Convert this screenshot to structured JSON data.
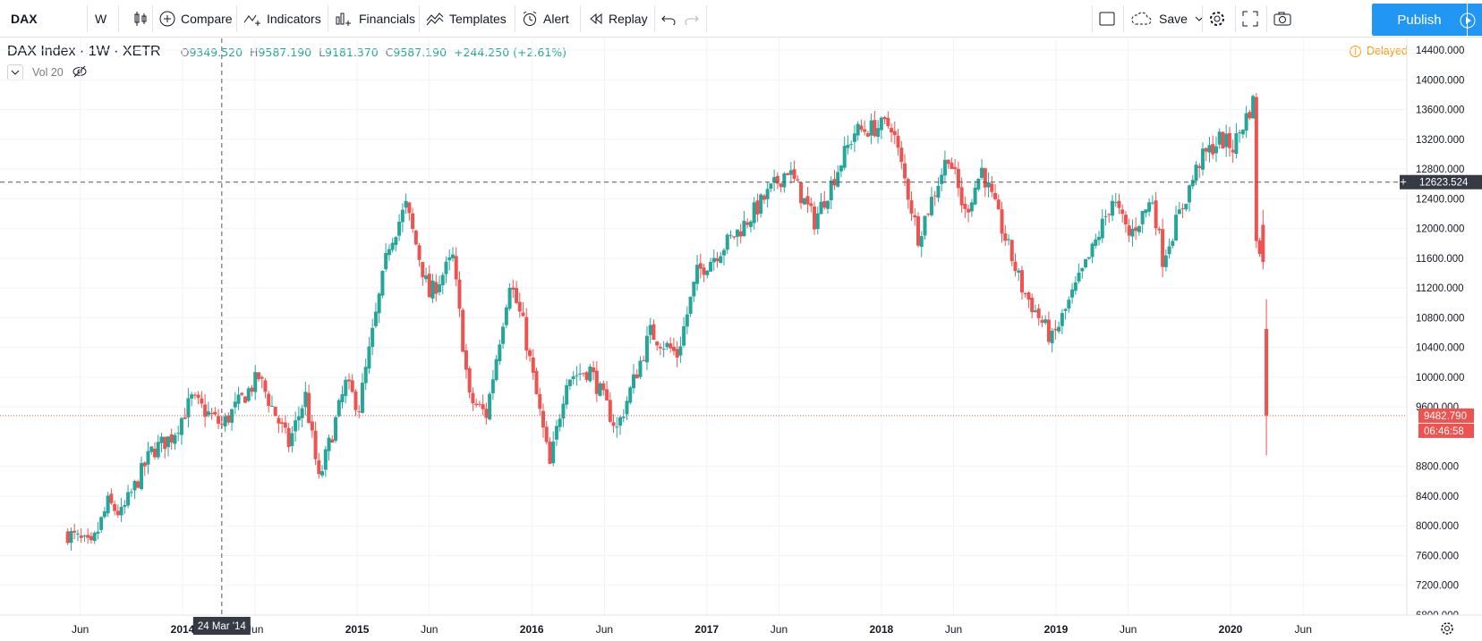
{
  "toolbar": {
    "symbol": "DAX",
    "interval": "W",
    "compare": "Compare",
    "indicators": "Indicators",
    "financials": "Financials",
    "templates": "Templates",
    "alert": "Alert",
    "replay": "Replay",
    "save": "Save",
    "publish": "Publish"
  },
  "legend": {
    "name": "DAX Index",
    "interval": "1W",
    "exchange": "XETR",
    "open_key": "O",
    "open": "9349.520",
    "high_key": "H",
    "high": "9587.190",
    "low_key": "L",
    "low": "9181.370",
    "close_key": "C",
    "close": "9587.190",
    "change": "+244.250 (+2.61%)",
    "volume": "Vol 20"
  },
  "status": {
    "delayed": "Delayed"
  },
  "chart_data": {
    "type": "candlestick",
    "y_axis": {
      "range": [
        6800,
        14400
      ],
      "ticks": [
        "14400.000",
        "14000.000",
        "13600.000",
        "13200.000",
        "12800.000",
        "12400.000",
        "12000.000",
        "11600.000",
        "11200.000",
        "10800.000",
        "10400.000",
        "10000.000",
        "9600.000",
        "8800.000",
        "8400.000",
        "8000.000",
        "7600.000",
        "7200.000",
        "6800.000"
      ]
    },
    "x_axis": {
      "labels": [
        "Jun",
        "2014",
        "Jun",
        "2015",
        "Jun",
        "2016",
        "Jun",
        "2017",
        "Jun",
        "2018",
        "Jun",
        "2019",
        "Jun",
        "2020",
        "Jun"
      ]
    },
    "crosshair": {
      "date_label": "24 Mar '14",
      "price_label": "12623.524",
      "price": 12623.524
    },
    "last_price": {
      "value": 9482.79,
      "label": "9482.790",
      "countdown": "06:46:58"
    },
    "anchors": [
      [
        "2013-05-06",
        7900
      ],
      [
        "2013-06-24",
        7700
      ],
      [
        "2013-07-29",
        8300
      ],
      [
        "2013-08-26",
        8150
      ],
      [
        "2013-10-28",
        9000
      ],
      [
        "2013-12-09",
        9200
      ],
      [
        "2014-01-20",
        9700
      ],
      [
        "2014-03-24",
        9350
      ],
      [
        "2014-06-09",
        10000
      ],
      [
        "2014-08-11",
        9100
      ],
      [
        "2014-09-15",
        9750
      ],
      [
        "2014-10-13",
        8600
      ],
      [
        "2014-12-08",
        9900
      ],
      [
        "2015-01-05",
        9600
      ],
      [
        "2015-03-09",
        11800
      ],
      [
        "2015-04-13",
        12300
      ],
      [
        "2015-06-01",
        11100
      ],
      [
        "2015-07-20",
        11600
      ],
      [
        "2015-08-24",
        9700
      ],
      [
        "2015-09-28",
        9500
      ],
      [
        "2015-11-16",
        11300
      ],
      [
        "2015-12-14",
        10700
      ],
      [
        "2016-02-08",
        8800
      ],
      [
        "2016-03-14",
        10000
      ],
      [
        "2016-05-02",
        10100
      ],
      [
        "2016-06-27",
        9300
      ],
      [
        "2016-09-05",
        10600
      ],
      [
        "2016-10-31",
        10300
      ],
      [
        "2016-12-12",
        11400
      ],
      [
        "2017-03-13",
        12000
      ],
      [
        "2017-06-19",
        12800
      ],
      [
        "2017-08-14",
        12100
      ],
      [
        "2017-10-16",
        13000
      ],
      [
        "2017-11-06",
        13300
      ],
      [
        "2018-01-22",
        13400
      ],
      [
        "2018-03-19",
        11900
      ],
      [
        "2018-05-21",
        13000
      ],
      [
        "2018-06-25",
        12200
      ],
      [
        "2018-07-30",
        12800
      ],
      [
        "2018-10-22",
        11200
      ],
      [
        "2018-12-24",
        10500
      ],
      [
        "2019-03-18",
        11700
      ],
      [
        "2019-04-29",
        12400
      ],
      [
        "2019-06-03",
        11900
      ],
      [
        "2019-07-22",
        12400
      ],
      [
        "2019-08-12",
        11600
      ],
      [
        "2019-10-28",
        12900
      ],
      [
        "2019-12-09",
        13200
      ],
      [
        "2020-01-06",
        13100
      ],
      [
        "2020-02-17",
        13700
      ],
      [
        "2020-02-24",
        11900
      ],
      [
        "2020-03-02",
        11600
      ],
      [
        "2020-03-09",
        9300
      ],
      [
        "2020-03-16",
        9500
      ]
    ]
  },
  "colors": {
    "up": "#26a69a",
    "down": "#ef5350",
    "grid": "#f0f3fa",
    "accent": "#2196f3",
    "delayed": "#ff9800"
  }
}
